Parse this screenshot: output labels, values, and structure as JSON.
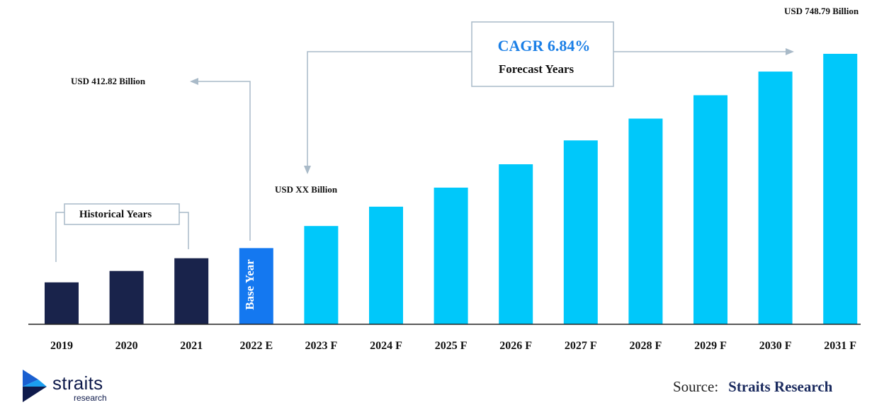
{
  "chart_data": {
    "type": "bar",
    "categories": [
      "2019",
      "2020",
      "2021",
      "2022 E",
      "2023 F",
      "2024 F",
      "2025 F",
      "2026 F",
      "2027 F",
      "2028 F",
      "2029 F",
      "2030 F",
      "2031 F"
    ],
    "values": [
      165,
      210,
      260,
      300,
      387,
      463,
      538,
      630,
      724,
      810,
      902,
      995,
      1065
    ],
    "ylim": [
      0,
      1065
    ],
    "value_scale": "relative bar heights (unlabeled axis)",
    "bar_groups": [
      "historical",
      "historical",
      "historical",
      "base",
      "forecast",
      "forecast",
      "forecast",
      "forecast",
      "forecast",
      "forecast",
      "forecast",
      "forecast",
      "forecast"
    ],
    "colors": {
      "historical": "#19234b",
      "base": "#1478f0",
      "forecast": "#00c8fa"
    },
    "annotations": {
      "start_value": "USD 412.82 Billion",
      "mid_value": "USD XX Billion",
      "end_value": "USD 748.79 Billion",
      "cagr": "CAGR 6.84%",
      "forecast_label": "Forecast Years",
      "historical_label": "Historical Years",
      "base_year_label": "Base Year"
    }
  },
  "source": {
    "prefix": "Source:",
    "name": "Straits Research"
  },
  "logo": {
    "main": "straits",
    "sub": "research"
  }
}
